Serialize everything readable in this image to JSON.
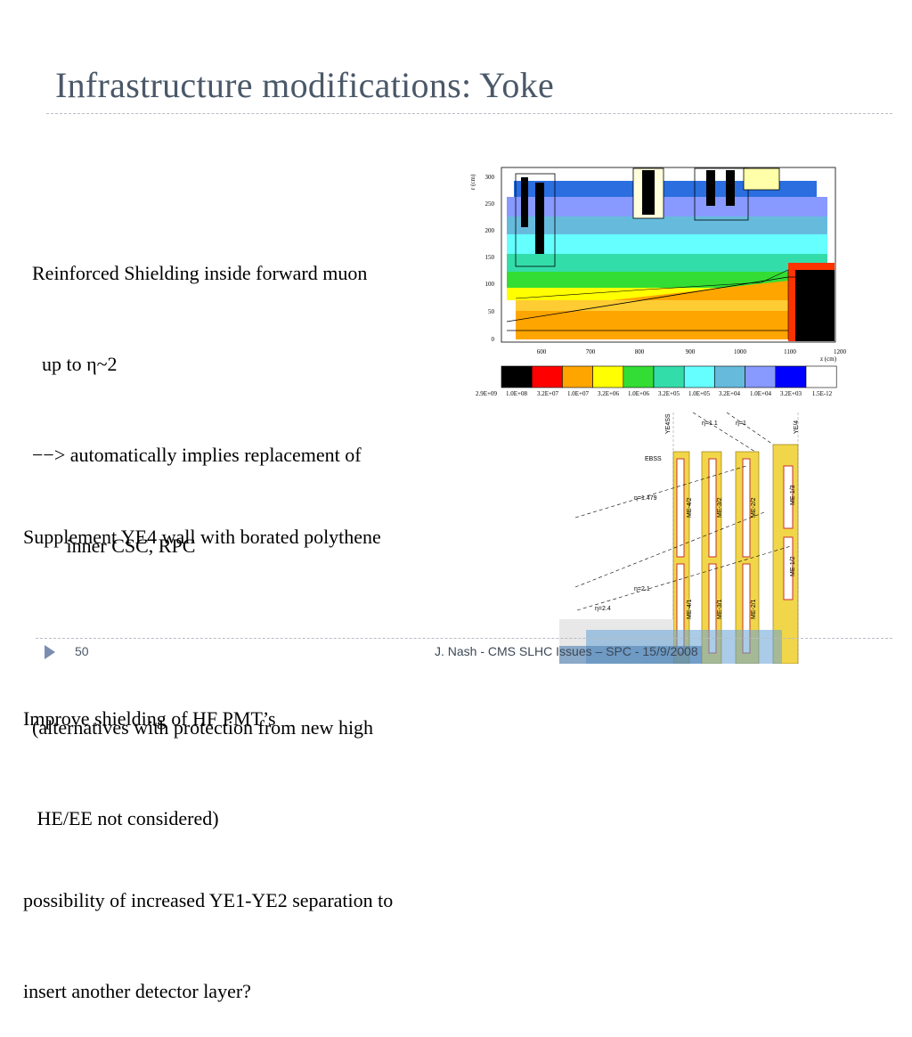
{
  "slide": {
    "title": "Infrastructure modifications: Yoke",
    "block1": [
      "Reinforced Shielding inside forward muon",
      "  up to η~2",
      "−−> automatically implies replacement of",
      "       inner CSC, RPC",
      "",
      "(alternatives with protection from new high",
      " HE/EE not considered)"
    ],
    "block2": [
      "Supplement YE4 wall with borated polythene",
      "",
      "Improve shielding of HF PMT’s",
      "",
      "possibility of increased YE1-YE2 separation to",
      "insert another detector layer?"
    ],
    "page_number": "50",
    "footer": "J. Nash - CMS SLHC Issues – SPC - 15/9/2008"
  },
  "flux_map": {
    "y_axis_label": "r (cm)",
    "x_axis_label": "z (cm)",
    "y_ticks": [
      "0",
      "50",
      "100",
      "150",
      "200",
      "250",
      "300"
    ],
    "x_ticks": [
      "600",
      "700",
      "800",
      "900",
      "1000",
      "1100",
      "1200"
    ],
    "scale_labels": [
      "2.9E+09",
      "1.0E+08",
      "3.2E+07",
      "1.0E+07",
      "3.2E+06",
      "1.0E+06",
      "3.2E+05",
      "1.0E+05",
      "3.2E+04",
      "1.0E+04",
      "3.2E+03",
      "1.5E-12"
    ],
    "scale_colors": [
      "#000000",
      "#ff0000",
      "#ffa500",
      "#ffff00",
      "#33dd33",
      "#33ddaa",
      "#66ffff",
      "#66bbdd",
      "#8899ff",
      "#0000ff",
      "#ffffff"
    ]
  },
  "detector": {
    "top_labels": [
      "YE4SS",
      "η=1.1",
      "η=1",
      "YE/4"
    ],
    "labels": [
      "EBSS",
      "η=1.479",
      "η=2.1",
      "η=2.4",
      "ME-4/2",
      "ME-3/2",
      "ME-2/2",
      "ME-1/3",
      "ME-4/1",
      "ME-3/1",
      "ME-2/1",
      "ME-1/2"
    ]
  }
}
